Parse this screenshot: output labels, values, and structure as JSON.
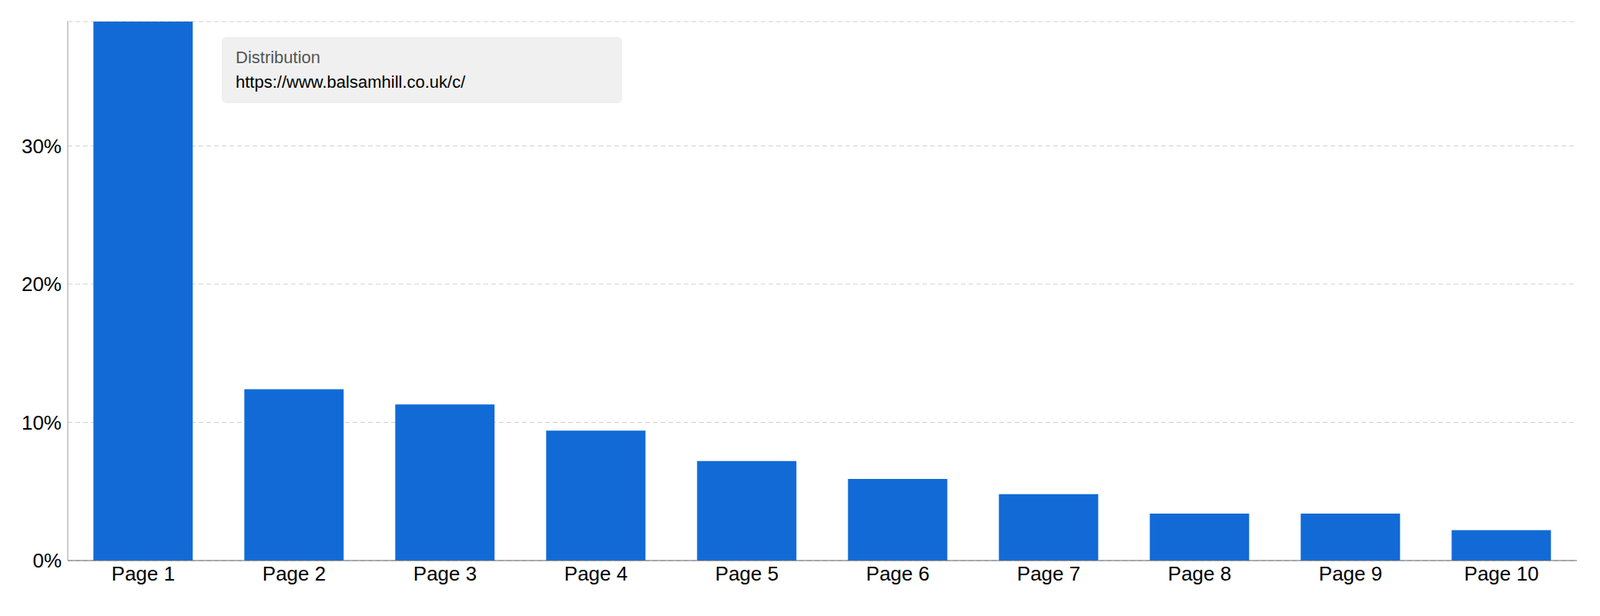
{
  "chart_data": {
    "type": "bar",
    "title": "Distribution",
    "categories": [
      "Page 1",
      "Page 2",
      "Page 3",
      "Page 4",
      "Page 5",
      "Page 6",
      "Page 7",
      "Page 8",
      "Page 9",
      "Page 10"
    ],
    "series": [
      {
        "name": "https://www.balsamhill.co.uk/c/",
        "color": "#116ad6",
        "values": [
          39,
          12.4,
          11.3,
          9.4,
          7.2,
          5.9,
          4.8,
          3.4,
          3.4,
          2.2
        ]
      }
    ],
    "ylim": [
      0,
      39
    ],
    "yticks": [
      {
        "value": 0,
        "label": "0%"
      },
      {
        "value": 10,
        "label": "10%"
      },
      {
        "value": 20,
        "label": "20%"
      },
      {
        "value": 30,
        "label": "30%"
      }
    ],
    "grid": true
  }
}
